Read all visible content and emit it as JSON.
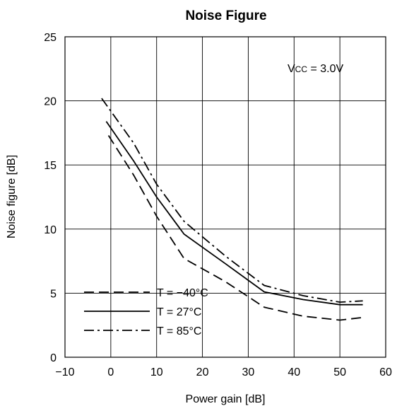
{
  "chart_data": {
    "type": "line",
    "title": "Noise Figure",
    "xlabel": "Power gain [dB]",
    "ylabel": "Noise figure [dB]",
    "xlim": [
      -10,
      60
    ],
    "ylim": [
      0,
      25
    ],
    "xticks": [
      -10,
      0,
      10,
      20,
      30,
      40,
      50,
      60
    ],
    "xtick_labels": [
      "−10",
      "0",
      "10",
      "20",
      "30",
      "40",
      "50",
      "60"
    ],
    "yticks": [
      0,
      5,
      10,
      15,
      20,
      25
    ],
    "ytick_labels": [
      "0",
      "5",
      "10",
      "15",
      "20",
      "25"
    ],
    "grid": true,
    "legend_position": "bottom-left",
    "annotation": "Vcc = 3.0V",
    "series": [
      {
        "name": "T = −40°C",
        "dash": "dashed",
        "x": [
          -0.5,
          5,
          10,
          16,
          25,
          33.5,
          42,
          50,
          55
        ],
        "y": [
          17.3,
          14.2,
          11,
          7.7,
          5.9,
          3.9,
          3.2,
          2.9,
          3.1
        ]
      },
      {
        "name": "T = 27°C",
        "dash": "solid",
        "x": [
          -1,
          5,
          10,
          16,
          25,
          33.5,
          42,
          50,
          55
        ],
        "y": [
          18.4,
          15.3,
          12.5,
          9.6,
          7.3,
          5.1,
          4.5,
          4.1,
          4.1
        ]
      },
      {
        "name": "T = 85°C",
        "dash": "dashdot",
        "x": [
          -2,
          5,
          10,
          16,
          25,
          33.5,
          42,
          50,
          55
        ],
        "y": [
          20.2,
          16.7,
          13.5,
          10.6,
          7.9,
          5.6,
          4.8,
          4.3,
          4.4
        ]
      }
    ]
  }
}
